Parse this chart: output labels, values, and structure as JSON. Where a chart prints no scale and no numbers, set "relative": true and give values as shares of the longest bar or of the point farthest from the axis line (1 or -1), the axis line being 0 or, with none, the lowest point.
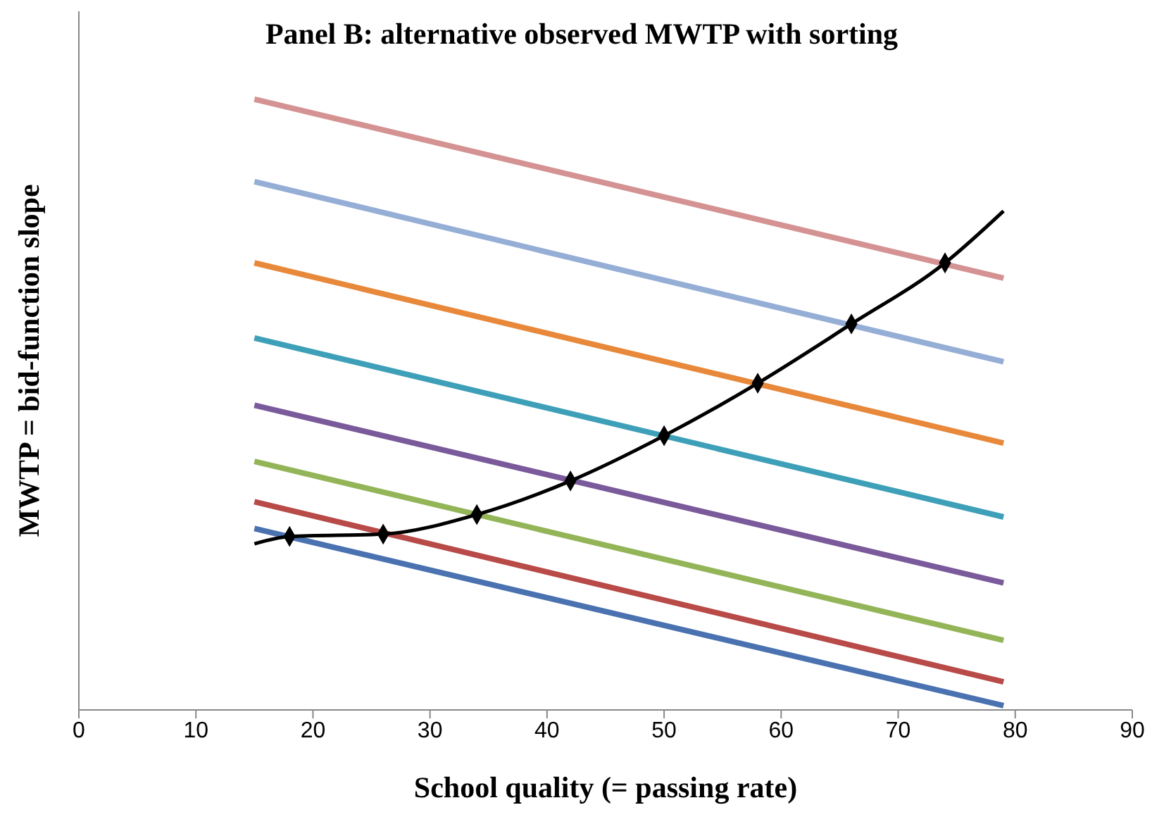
{
  "chart_data": {
    "type": "line",
    "title": "Panel B: alternative observed MWTP with sorting",
    "xlabel": "School quality (= passing rate)",
    "ylabel": "MWTP = bid-function slope",
    "relative": true,
    "xlim": [
      0,
      90
    ],
    "xticks": [
      0,
      10,
      20,
      30,
      40,
      50,
      60,
      70,
      80,
      90
    ],
    "line_style": "solid",
    "series": [
      {
        "color": "#4a72b0",
        "x": [
          15,
          79
        ],
        "values": [
          0.297,
          0.007
        ]
      },
      {
        "color": "#b84a48",
        "x": [
          15,
          79
        ],
        "values": [
          0.341,
          0.046
        ]
      },
      {
        "color": "#93b558",
        "x": [
          15,
          79
        ],
        "values": [
          0.407,
          0.114
        ]
      },
      {
        "color": "#7a5a9a",
        "x": [
          15,
          79
        ],
        "values": [
          0.499,
          0.208
        ]
      },
      {
        "color": "#3ea0b8",
        "x": [
          15,
          79
        ],
        "values": [
          0.609,
          0.316
        ]
      },
      {
        "color": "#e8883a",
        "x": [
          15,
          79
        ],
        "values": [
          0.732,
          0.437
        ]
      },
      {
        "color": "#95aed6",
        "x": [
          15,
          79
        ],
        "values": [
          0.865,
          0.57
        ]
      },
      {
        "color": "#d49292",
        "x": [
          15,
          79
        ],
        "values": [
          1,
          0.707
        ]
      },
      {
        "color": "#000000",
        "x": [
          15,
          18,
          26,
          34,
          42,
          50,
          58,
          66,
          74,
          79
        ],
        "values": [
          0.272,
          0.284,
          0.288,
          0.32,
          0.375,
          0.449,
          0.535,
          0.632,
          0.732,
          0.817
        ]
      },
      {
        "type": "scatter",
        "marker": "diamond",
        "color": "#000000",
        "x": [
          18,
          26,
          34,
          42,
          50,
          58,
          66,
          74
        ],
        "values": [
          0.284,
          0.288,
          0.32,
          0.375,
          0.449,
          0.535,
          0.632,
          0.732
        ]
      }
    ]
  }
}
